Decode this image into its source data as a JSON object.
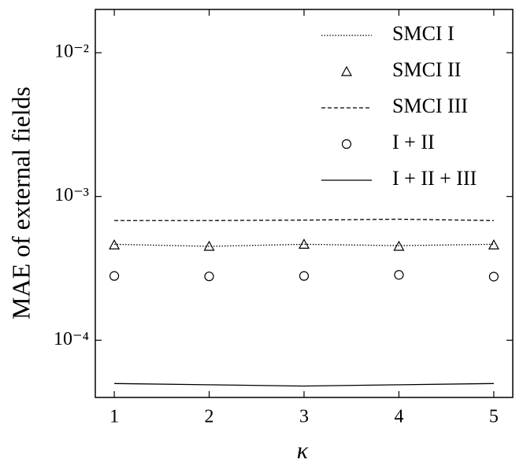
{
  "chart_data": {
    "type": "line",
    "x_label": "κ",
    "y_label": "MAE of external fields",
    "x": [
      1,
      2,
      3,
      4,
      5
    ],
    "xlim": [
      0.8,
      5.2
    ],
    "xticks": [
      1,
      2,
      3,
      4,
      5
    ],
    "y_scale": "log",
    "ylim": [
      4e-05,
      0.02
    ],
    "yticks": [
      {
        "value": 0.0001,
        "label": "10⁻⁴"
      },
      {
        "value": 0.001,
        "label": "10⁻³"
      },
      {
        "value": 0.01,
        "label": "10⁻²"
      }
    ],
    "legend": "upper right",
    "series": [
      {
        "name": "SMCI I",
        "color": "#000000",
        "line": "dotted",
        "marker": "none",
        "values": [
          0.000465,
          0.00045,
          0.000465,
          0.000455,
          0.000465
        ]
      },
      {
        "name": "SMCI II",
        "color": "#000000",
        "line": "none",
        "marker": "triangle",
        "values": [
          0.00046,
          0.00045,
          0.000465,
          0.00045,
          0.00046
        ]
      },
      {
        "name": "SMCI III",
        "color": "#000000",
        "line": "dashed",
        "marker": "none",
        "values": [
          0.00068,
          0.00068,
          0.000685,
          0.000695,
          0.00068
        ]
      },
      {
        "name": "I + II",
        "color": "#000000",
        "line": "none",
        "marker": "circle",
        "values": [
          0.00028,
          0.000278,
          0.00028,
          0.000285,
          0.000277
        ]
      },
      {
        "name": "I + II + III",
        "color": "#000000",
        "line": "solid",
        "marker": "none",
        "values": [
          5e-05,
          4.9e-05,
          4.8e-05,
          4.9e-05,
          5e-05
        ]
      }
    ]
  }
}
